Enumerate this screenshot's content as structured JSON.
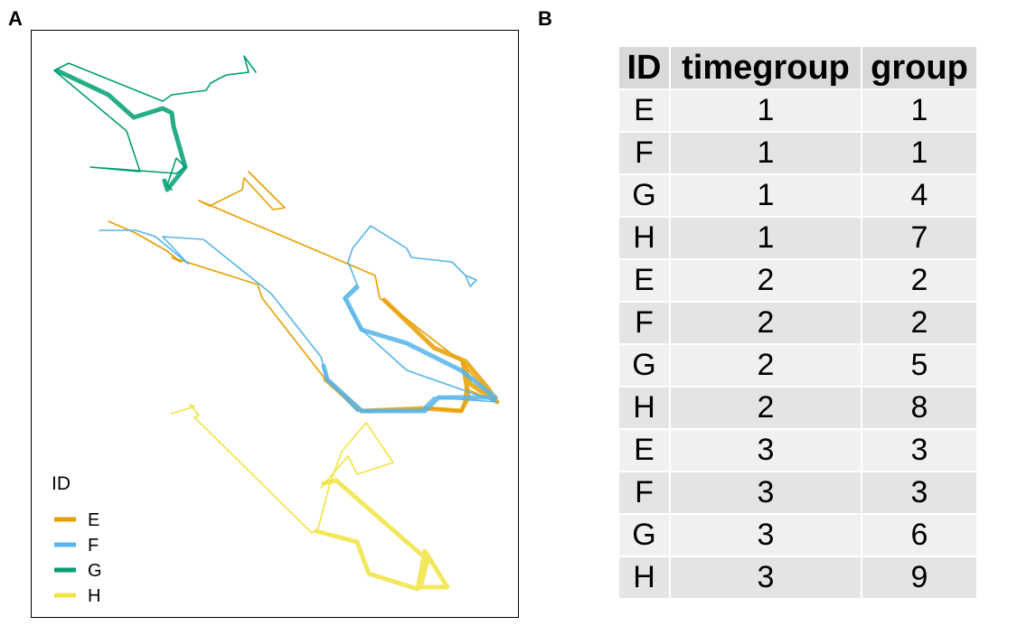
{
  "panel_a": {
    "label": "A",
    "legend": {
      "title": "ID",
      "entries": [
        {
          "id": "E",
          "color": "#E69F00"
        },
        {
          "id": "F",
          "color": "#56B4E9"
        },
        {
          "id": "G",
          "color": "#009E73"
        },
        {
          "id": "H",
          "color": "#F0E442"
        }
      ]
    }
  },
  "panel_b": {
    "label": "B",
    "columns": [
      "ID",
      "timegroup",
      "group"
    ],
    "rows": [
      [
        "E",
        "1",
        "1"
      ],
      [
        "F",
        "1",
        "1"
      ],
      [
        "G",
        "1",
        "4"
      ],
      [
        "H",
        "1",
        "7"
      ],
      [
        "E",
        "2",
        "2"
      ],
      [
        "F",
        "2",
        "2"
      ],
      [
        "G",
        "2",
        "5"
      ],
      [
        "H",
        "2",
        "8"
      ],
      [
        "E",
        "3",
        "3"
      ],
      [
        "F",
        "3",
        "3"
      ],
      [
        "G",
        "3",
        "6"
      ],
      [
        "H",
        "3",
        "9"
      ]
    ]
  }
}
